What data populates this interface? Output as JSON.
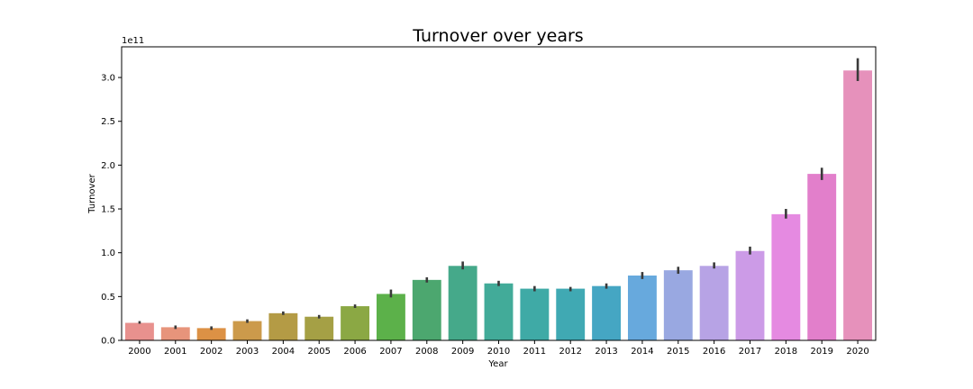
{
  "chart_data": {
    "type": "bar",
    "title": "Turnover over years",
    "xlabel": "Year",
    "ylabel": "Turnover",
    "y_offset_label": "1e11",
    "ylim": [
      0,
      3.35
    ],
    "yticks": [
      0.0,
      0.5,
      1.0,
      1.5,
      2.0,
      2.5,
      3.0
    ],
    "ytick_labels": [
      "0.0",
      "0.5",
      "1.0",
      "1.5",
      "2.0",
      "2.5",
      "3.0"
    ],
    "grid": false,
    "legend": "none",
    "categories": [
      "2000",
      "2001",
      "2002",
      "2003",
      "2004",
      "2005",
      "2006",
      "2007",
      "2008",
      "2009",
      "2010",
      "2011",
      "2012",
      "2013",
      "2014",
      "2015",
      "2016",
      "2017",
      "2018",
      "2019",
      "2020"
    ],
    "values": [
      0.2,
      0.15,
      0.14,
      0.22,
      0.31,
      0.27,
      0.39,
      0.53,
      0.69,
      0.85,
      0.65,
      0.59,
      0.59,
      0.62,
      0.74,
      0.8,
      0.85,
      1.02,
      1.44,
      1.9,
      3.08
    ],
    "error_low": [
      0.19,
      0.13,
      0.12,
      0.2,
      0.29,
      0.25,
      0.37,
      0.49,
      0.66,
      0.81,
      0.62,
      0.56,
      0.56,
      0.59,
      0.7,
      0.76,
      0.82,
      0.98,
      1.39,
      1.83,
      2.96
    ],
    "error_high": [
      0.22,
      0.17,
      0.16,
      0.24,
      0.33,
      0.29,
      0.41,
      0.58,
      0.72,
      0.9,
      0.68,
      0.62,
      0.61,
      0.65,
      0.78,
      0.84,
      0.89,
      1.07,
      1.5,
      1.97,
      3.22
    ],
    "colors": [
      "#e8918e",
      "#e7947b",
      "#dc9145",
      "#cc9a4b",
      "#b49b45",
      "#a5a045",
      "#8ba844",
      "#5cb14a",
      "#4ca76f",
      "#45a98a",
      "#42ab99",
      "#3faaa6",
      "#40a9b3",
      "#45a6c3",
      "#67a9dd",
      "#99a8e1",
      "#b7a3e5",
      "#cc9be7",
      "#e58ae1",
      "#e27fcb",
      "#e691bb"
    ]
  }
}
